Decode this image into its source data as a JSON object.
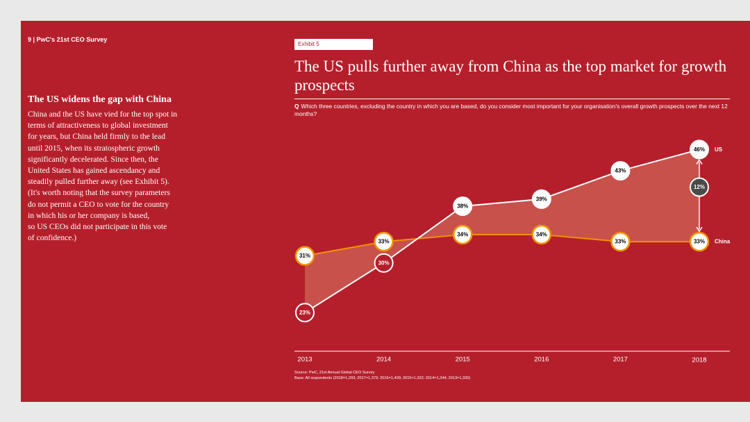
{
  "header": {
    "page_label": "9 | PwC's 21st CEO Survey"
  },
  "sidebar": {
    "heading": "The US widens the gap with China",
    "body": "China and the US have vied for the top spot in\nterms of attractiveness to global investment\nfor years, but China held firmly to the lead\nuntil 2015, when its stratospheric growth\nsignificantly decelerated. Since then, the\nUnited States has gained ascendancy and\nsteadily pulled further away (see Exhibit 5).\n(It's worth noting that the survey parameters\ndo not permit a CEO to vote for the country\nin which his or her company is based,\nso US CEOs did not participate in this vote\nof confidence.)"
  },
  "exhibit": {
    "tag": "Exhibit 5",
    "title": "The US pulls further away from China as the top market for growth prospects",
    "question_prefix": "Q",
    "question": "Which three countries, excluding the country in which you are based, do you consider most important for your organisation's overall growth prospects over the next 12 months?",
    "source": "Source: PwC, 21st Annual Global CEO Survey",
    "base": "Base: All respondents (2018=1,293; 2017=1,379; 2016=1,409; 2015=1,322; 2014=1,344; 2013=1,330)"
  },
  "colors": {
    "background": "#b51f2b",
    "us_line": "#ffffff",
    "china_line": "#f29200",
    "gap_fill": "#c8514b",
    "gap_marker": "#4a4a4a"
  },
  "chart_data": {
    "type": "line",
    "title": "The US pulls further away from China as the top market for growth prospects",
    "categories": [
      "2013",
      "2014",
      "2015",
      "2016",
      "2017",
      "2018"
    ],
    "series": [
      {
        "name": "US",
        "values": [
          23,
          30,
          38,
          39,
          43,
          46
        ],
        "labels": [
          "23%",
          "30%",
          "38%",
          "39%",
          "43%",
          "46%"
        ]
      },
      {
        "name": "China",
        "values": [
          31,
          33,
          34,
          34,
          33,
          33
        ],
        "labels": [
          "31%",
          "33%",
          "34%",
          "34%",
          "33%",
          "33%"
        ]
      }
    ],
    "gap": {
      "year": "2018",
      "value": 12,
      "label": "12%"
    },
    "ylim": [
      20,
      48
    ],
    "xlabel": "",
    "ylabel": "",
    "grid": false
  }
}
